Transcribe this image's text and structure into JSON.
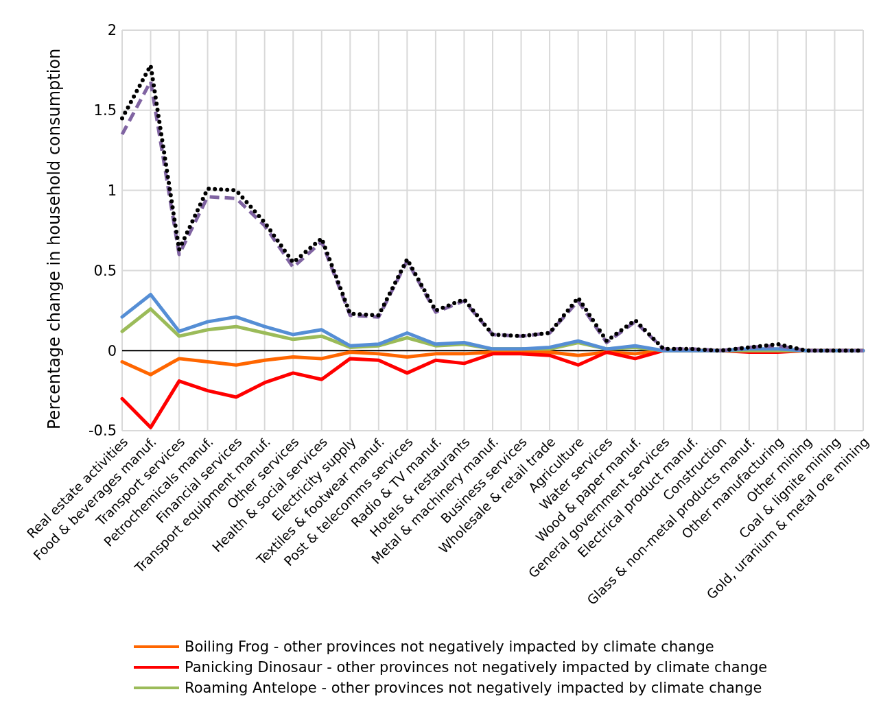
{
  "chart_data": {
    "type": "line",
    "ylabel": "Percentage change in household consumption",
    "categories": [
      "Real estate activities",
      "Food & beverages manuf.",
      "Transport services",
      "Petrochemicals manuf.",
      "Financial services",
      "Transport equipment manuf.",
      "Other services",
      "Health & social services",
      "Electricity supply",
      "Textiles & footwear manuf.",
      "Post & telecomms services",
      "Radio & TV manuf.",
      "Hotels & restaurants",
      "Metal & machinery manuf.",
      "Business services",
      "Wholesale & retail trade",
      "Agriculture",
      "Water services",
      "Wood & paper manuf.",
      "General government services",
      "Electrical product manuf.",
      "Construction",
      "Glass & non-metal products manuf.",
      "Other manufacturing",
      "Other mining",
      "Coal & lignite mining",
      "Gold, uranium & metal ore mining"
    ],
    "series": [
      {
        "name": "Boiling Frog - other provinces not negatively impacted by climate change",
        "color": "#ff6600",
        "line_style": "solid",
        "values": [
          -0.07,
          -0.15,
          -0.05,
          -0.07,
          -0.09,
          -0.06,
          -0.04,
          -0.05,
          -0.01,
          -0.02,
          -0.04,
          -0.02,
          -0.02,
          -0.01,
          -0.01,
          -0.01,
          -0.03,
          -0.01,
          -0.02,
          0,
          0,
          null,
          null,
          null,
          null,
          null,
          null
        ]
      },
      {
        "name": "Panicking Dinosaur - other provinces not negatively impacted by climate change",
        "color": "#ff0000",
        "line_style": "solid",
        "values": [
          -0.3,
          -0.48,
          -0.19,
          -0.25,
          -0.29,
          -0.2,
          -0.14,
          -0.18,
          -0.05,
          -0.06,
          -0.14,
          -0.06,
          -0.08,
          -0.02,
          -0.02,
          -0.03,
          -0.09,
          -0.01,
          -0.05,
          0,
          0,
          0,
          -0.01,
          -0.01,
          0,
          0,
          0
        ]
      },
      {
        "name": "Roaming Antelope - other provinces not negatively impacted by climate change",
        "color": "#9bbb59",
        "line_style": "solid",
        "values": [
          0.12,
          0.26,
          0.09,
          0.13,
          0.15,
          0.11,
          0.07,
          0.09,
          0.02,
          0.03,
          0.08,
          0.03,
          0.04,
          0.01,
          0.01,
          0.01,
          0.05,
          0.01,
          0.02,
          0,
          0,
          0,
          0,
          0,
          0,
          0,
          0
        ]
      },
      {
        "color": "#558ed5",
        "line_style": "solid",
        "values": [
          0.21,
          0.35,
          0.12,
          0.18,
          0.21,
          0.15,
          0.1,
          0.13,
          0.03,
          0.04,
          0.11,
          0.04,
          0.05,
          0.01,
          0.01,
          0.02,
          0.06,
          0.01,
          0.03,
          0,
          0,
          0,
          0.01,
          0.01,
          0,
          0,
          0
        ]
      },
      {
        "color": "#8064a2",
        "line_style": "dashed",
        "values": [
          1.35,
          1.68,
          0.6,
          0.96,
          0.95,
          0.78,
          0.52,
          0.68,
          0.22,
          0.21,
          0.56,
          0.24,
          0.31,
          0.1,
          0.09,
          0.11,
          0.31,
          0.05,
          0.18,
          0.01,
          0.01,
          0,
          0.02,
          0.03,
          0,
          0,
          0
        ]
      },
      {
        "color": "#000000",
        "line_style": "dotted",
        "values": [
          1.45,
          1.78,
          0.63,
          1.01,
          1.0,
          0.8,
          0.55,
          0.7,
          0.23,
          0.22,
          0.57,
          0.25,
          0.32,
          0.1,
          0.09,
          0.11,
          0.33,
          0.06,
          0.19,
          0.01,
          0.01,
          0,
          0.02,
          0.04,
          0,
          0,
          0
        ]
      }
    ],
    "ylim": [
      -0.5,
      2
    ],
    "yticks": [
      -0.5,
      0,
      0.5,
      1,
      1.5,
      2
    ],
    "grid": true,
    "legend": "bottom",
    "marker": "none",
    "ref_lines": [
      {
        "axis": "y",
        "value": 0,
        "color": "#000000"
      }
    ]
  }
}
